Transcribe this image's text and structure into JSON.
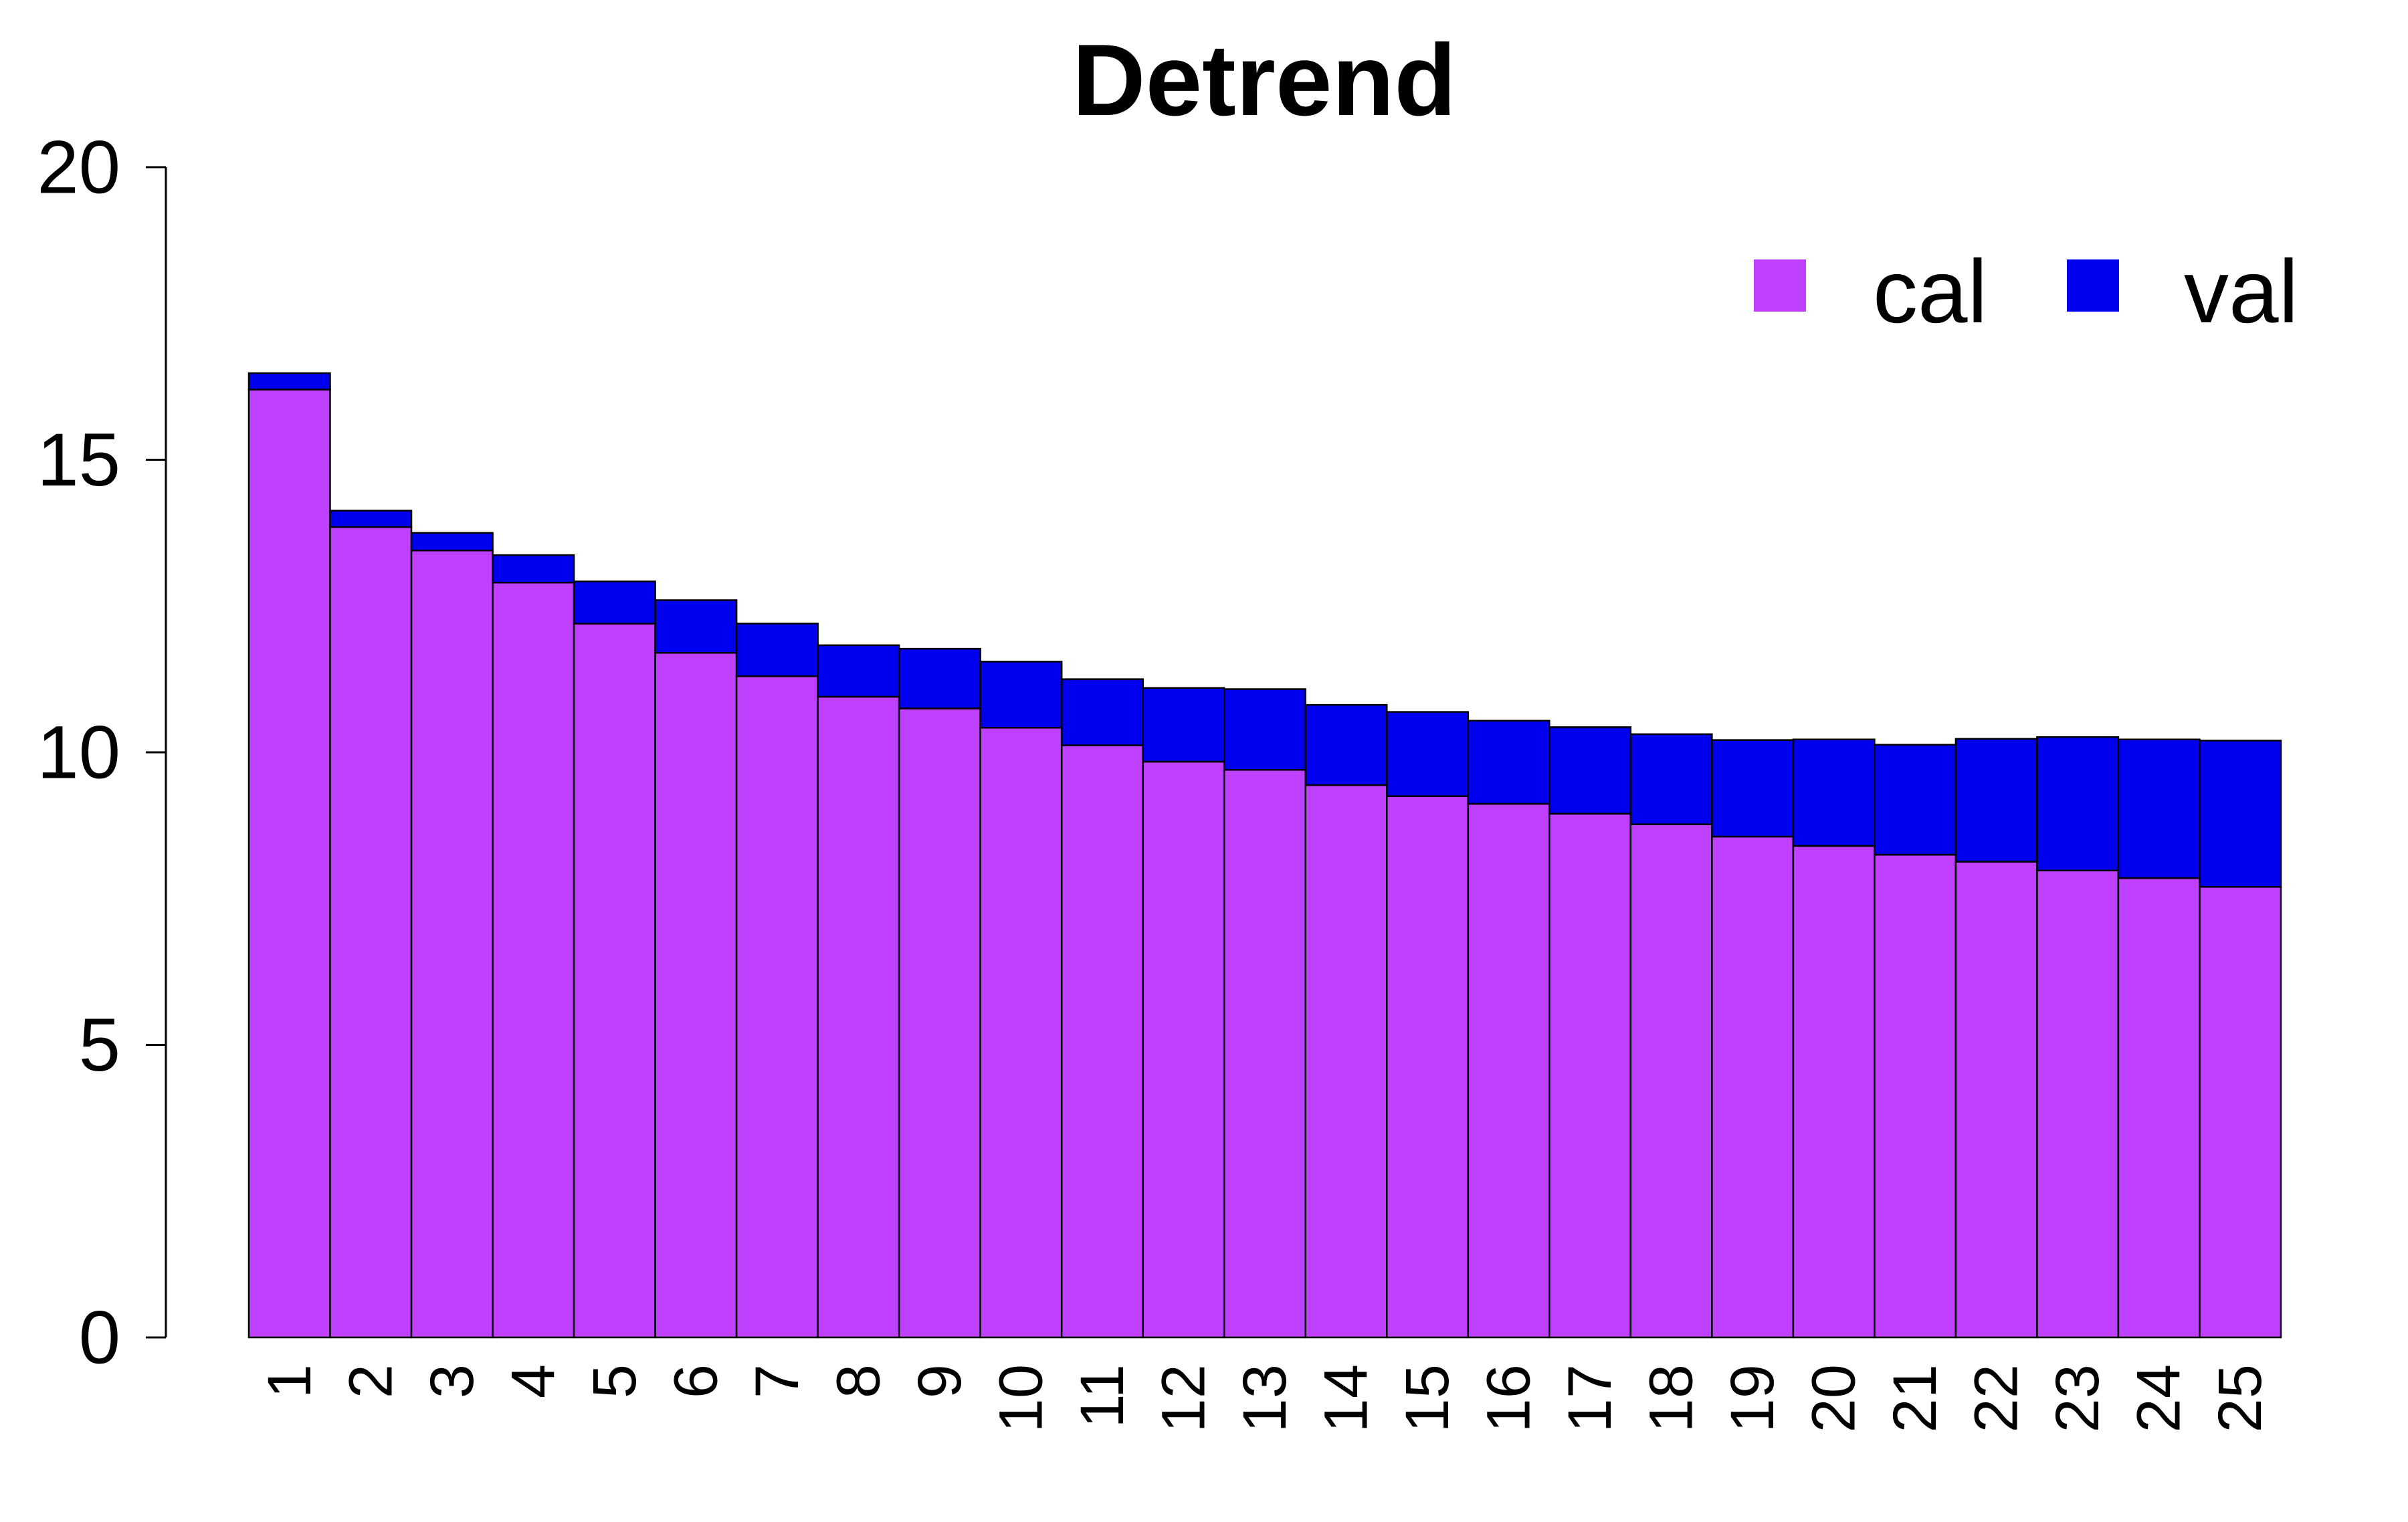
{
  "chart_data": {
    "type": "bar",
    "stacked": true,
    "title": "Detrend",
    "xlabel": "",
    "ylabel": "",
    "ylim": [
      0,
      20
    ],
    "y_ticks": [
      0,
      5,
      10,
      15,
      20
    ],
    "grid": false,
    "legend_position": "top-right",
    "categories": [
      "1",
      "2",
      "3",
      "4",
      "5",
      "6",
      "7",
      "8",
      "9",
      "10",
      "11",
      "12",
      "13",
      "14",
      "15",
      "16",
      "17",
      "18",
      "19",
      "20",
      "21",
      "22",
      "23",
      "24",
      "25"
    ],
    "series": [
      {
        "name": "cal",
        "color": "#BF40FF",
        "values": [
          16.2,
          13.85,
          13.45,
          12.9,
          12.2,
          11.7,
          11.3,
          10.95,
          10.75,
          10.42,
          10.12,
          9.84,
          9.7,
          9.44,
          9.25,
          9.12,
          8.95,
          8.77,
          8.56,
          8.4,
          8.25,
          8.13,
          7.98,
          7.85,
          7.7
        ],
        "legend_label": "cal"
      },
      {
        "name": "val",
        "color": "#0000EE",
        "values": [
          0.28,
          0.28,
          0.3,
          0.47,
          0.72,
          0.9,
          0.9,
          0.88,
          1.02,
          1.13,
          1.13,
          1.26,
          1.38,
          1.37,
          1.44,
          1.42,
          1.48,
          1.54,
          1.65,
          1.82,
          1.88,
          2.1,
          2.28,
          2.37,
          2.5
        ],
        "legend_label": "val"
      }
    ]
  }
}
